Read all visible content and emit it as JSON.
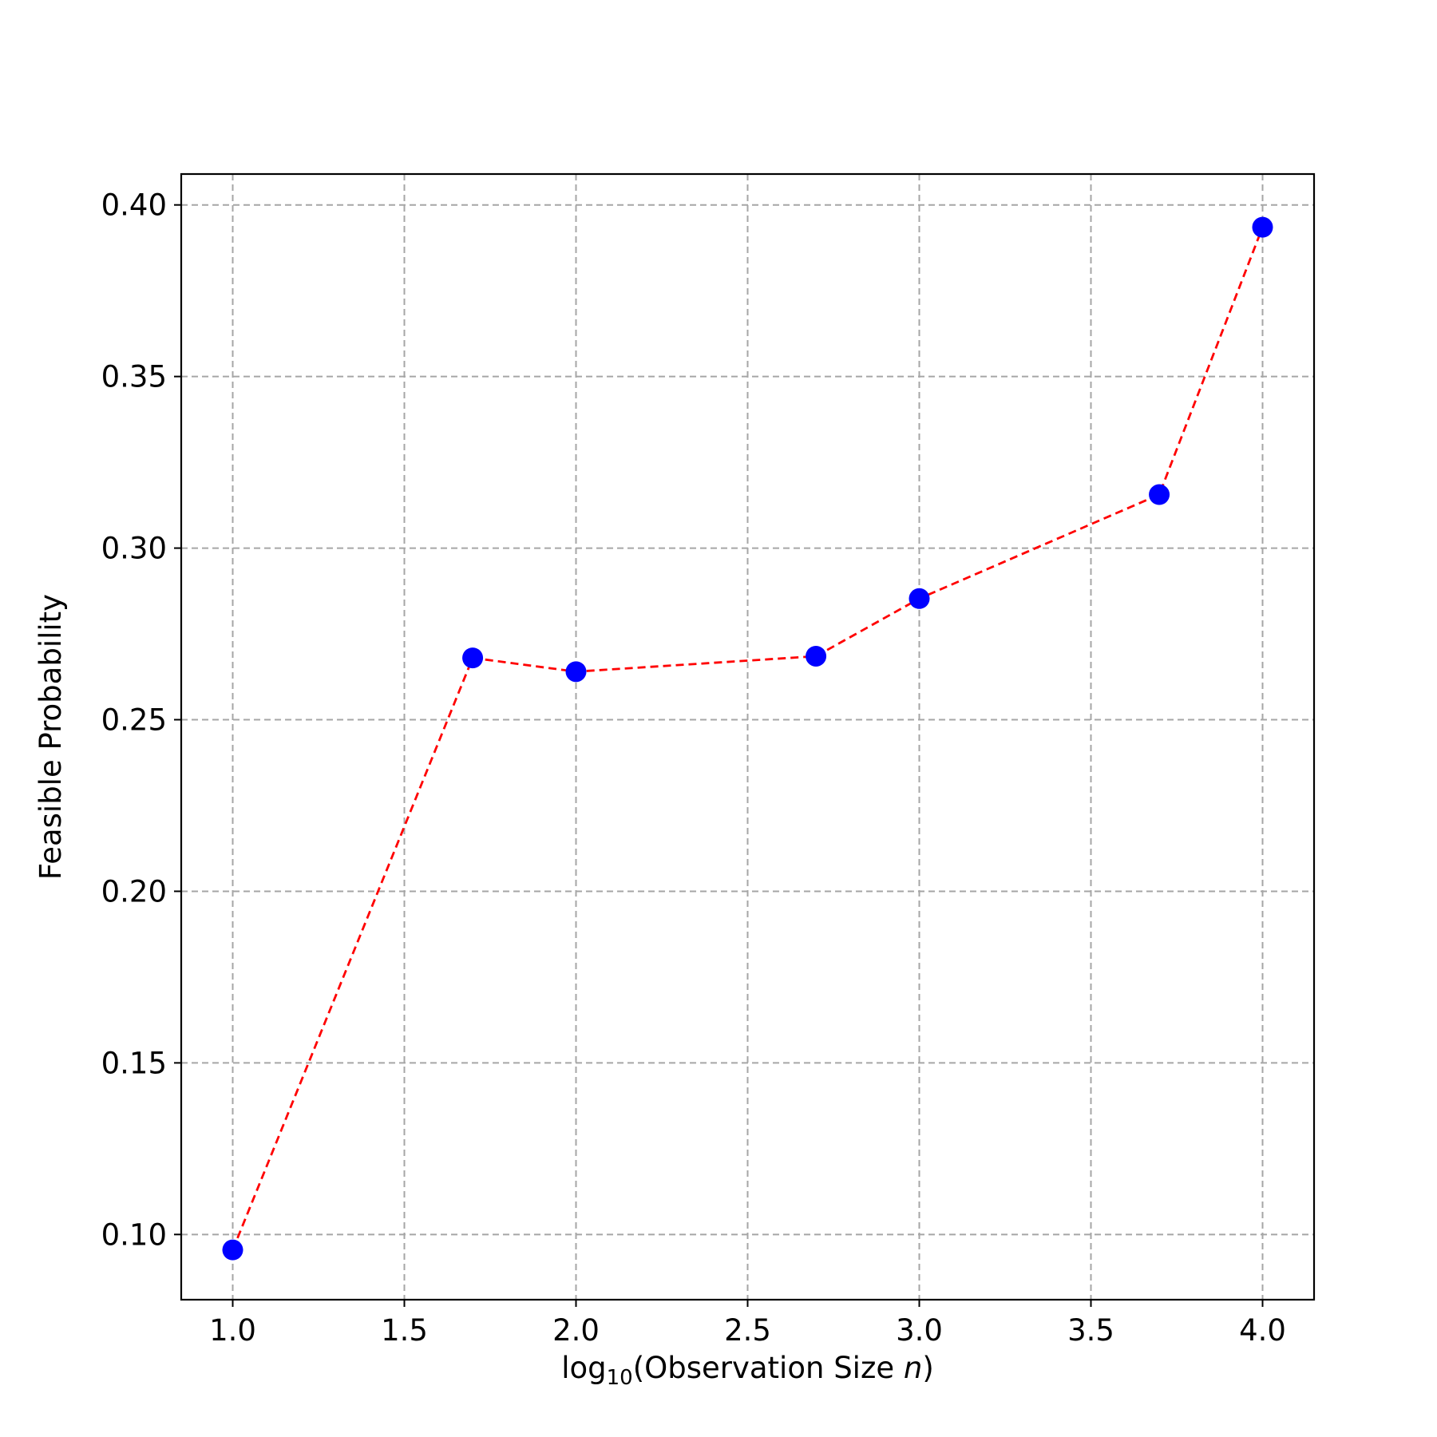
{
  "chart_data": {
    "type": "line",
    "title": "",
    "xlabel_parts": {
      "prefix": "log",
      "sub": "10",
      "open": "(Observation Size ",
      "italic": "n",
      "close": ")"
    },
    "ylabel": "Feasible Probability",
    "xlim": [
      0.85,
      4.15
    ],
    "ylim": [
      0.081,
      0.409
    ],
    "xticks": [
      1.0,
      1.5,
      2.0,
      2.5,
      3.0,
      3.5,
      4.0
    ],
    "xtick_labels": [
      "1.0",
      "1.5",
      "2.0",
      "2.5",
      "3.0",
      "3.5",
      "4.0"
    ],
    "yticks": [
      0.1,
      0.15,
      0.2,
      0.25,
      0.3,
      0.35,
      0.4
    ],
    "ytick_labels": [
      "0.10",
      "0.15",
      "0.20",
      "0.25",
      "0.30",
      "0.35",
      "0.40"
    ],
    "grid": true,
    "series": [
      {
        "x": [
          1.0,
          1.699,
          2.0,
          2.699,
          3.0,
          3.699,
          4.0
        ],
        "y": [
          0.0955,
          0.268,
          0.264,
          0.2685,
          0.2853,
          0.3156,
          0.3935
        ],
        "marker_color": "#0000ff",
        "line_color": "#ff0000"
      }
    ]
  }
}
